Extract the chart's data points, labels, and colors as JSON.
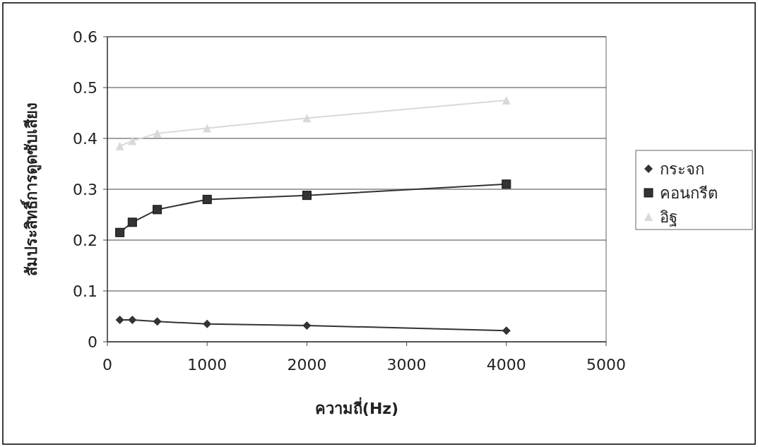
{
  "chart_data": {
    "type": "line",
    "xlabel": "ความถี่(Hz)",
    "ylabel": "สัมประสิทธิ์การดูดซับเสียง",
    "x": [
      125,
      250,
      500,
      1000,
      2000,
      4000
    ],
    "series": [
      {
        "name": "กระจก",
        "color": "#333333",
        "marker": "diamond",
        "values": [
          0.043,
          0.043,
          0.04,
          0.035,
          0.032,
          0.022
        ]
      },
      {
        "name": "คอนกรีต",
        "color": "#333333",
        "marker": "square",
        "values": [
          0.215,
          0.235,
          0.26,
          0.28,
          0.288,
          0.31
        ]
      },
      {
        "name": "อิฐ",
        "color": "#d9d9d9",
        "marker": "triangle",
        "values": [
          0.385,
          0.395,
          0.41,
          0.42,
          0.44,
          0.475
        ]
      }
    ],
    "xlim": [
      0,
      5000
    ],
    "xticks": [
      0,
      1000,
      2000,
      3000,
      4000,
      5000
    ],
    "ylim": [
      0,
      0.6
    ],
    "yticks": [
      0,
      0.1,
      0.2,
      0.3,
      0.4,
      0.5,
      0.6
    ],
    "grid": "y",
    "legend": "right"
  }
}
